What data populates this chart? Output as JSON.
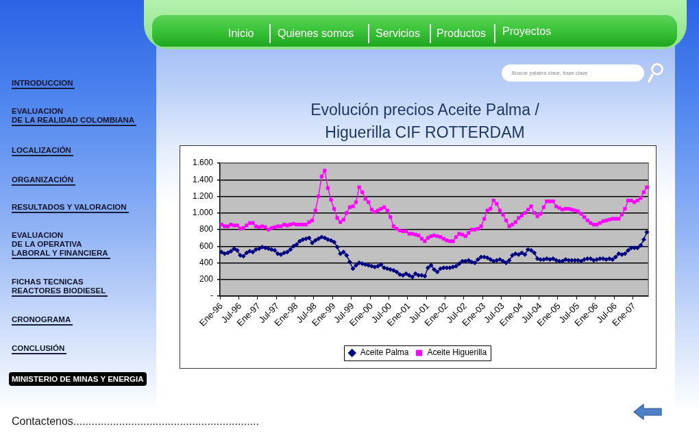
{
  "chart_data": [
    {
      "type": "other",
      "annotations": [
        "Inicio",
        "Quienes somos",
        "Servicios",
        "Productos",
        "Proyectos",
        "Buscar palabra clave, frase clave"
      ]
    },
    {
      "type": "other",
      "annotations": [
        "INTRODUCCION",
        "EVALUACION\nDE LA REALIDAD COLOMBIANA",
        "LOCALIZACIÓN",
        "ORGANIZACIÓN",
        "RESULTADOS Y VALORACION",
        "EVALUACION\nDE LA OPERATIVA\nLABORAL Y FINANCIERA",
        "FICHAS TECNICAS\nREACTORES BIODIESEL",
        "CRONOGRAMA",
        "CONCLUSIÓN",
        "MINISTERIO DE MINAS Y ENERGIA",
        "Contactenos............................................................."
      ]
    },
    {
      "type": "line",
      "title": "Evolución precios Aceite Palma / Higuerilla CIF ROTTERDAM",
      "categories": [
        "Ene-96",
        null,
        null,
        null,
        null,
        null,
        "Jul-96",
        null,
        null,
        null,
        null,
        null,
        "Ene-97",
        null,
        null,
        null,
        null,
        null,
        "Jul-97",
        null,
        null,
        null,
        null,
        null,
        "Ene-98",
        null,
        null,
        null,
        null,
        null,
        "Jul-98",
        null,
        null,
        null,
        null,
        null,
        "Ene-99",
        null,
        null,
        null,
        null,
        null,
        "Jul-99",
        null,
        null,
        null,
        null,
        null,
        "Ene-00",
        null,
        null,
        null,
        null,
        null,
        "Jul-00",
        null,
        null,
        null,
        null,
        null,
        "Ene-01",
        null,
        null,
        null,
        null,
        null,
        "Jul-01",
        null,
        null,
        null,
        null,
        null,
        "Ene-02",
        null,
        null,
        null,
        null,
        null,
        "Jul-02",
        null,
        null,
        null,
        null,
        null,
        "Ene-03",
        null,
        null,
        null,
        null,
        null,
        "Jul-03",
        null,
        null,
        null,
        null,
        null,
        "Ene-04",
        null,
        null,
        null,
        null,
        null,
        "Jul-04",
        null,
        null,
        null,
        null,
        null,
        "Ene-05",
        null,
        null,
        null,
        null,
        null,
        "Jul-05",
        null,
        null,
        null,
        null,
        null,
        "Ene-06",
        null,
        null,
        null,
        null,
        null,
        "Jul-06",
        null,
        null,
        null,
        null,
        null,
        "Ene-07",
        null,
        null,
        null,
        null
      ],
      "series": [
        {
          "name": "Aceite Palma",
          "color": "#000080",
          "marker": "diamond",
          "values": [
            530,
            510,
            520,
            540,
            570,
            550,
            490,
            480,
            520,
            540,
            530,
            560,
            570,
            590,
            580,
            570,
            560,
            550,
            510,
            500,
            520,
            530,
            560,
            600,
            620,
            660,
            680,
            690,
            700,
            640,
            670,
            690,
            710,
            700,
            680,
            670,
            650,
            590,
            510,
            530,
            490,
            410,
            330,
            370,
            400,
            390,
            380,
            370,
            360,
            350,
            360,
            380,
            340,
            330,
            320,
            310,
            290,
            260,
            250,
            270,
            250,
            230,
            270,
            250,
            250,
            240,
            340,
            370,
            320,
            290,
            330,
            340,
            340,
            340,
            350,
            360,
            390,
            420,
            420,
            430,
            410,
            400,
            440,
            470,
            470,
            460,
            440,
            420,
            430,
            440,
            420,
            400,
            430,
            490,
            510,
            500,
            520,
            500,
            560,
            550,
            520,
            450,
            440,
            440,
            450,
            440,
            450,
            430,
            420,
            420,
            440,
            430,
            430,
            430,
            430,
            420,
            440,
            450,
            450,
            430,
            440,
            450,
            450,
            440,
            450,
            440,
            470,
            510,
            500,
            510,
            550,
            580,
            580,
            580,
            610,
            680,
            770
          ]
        },
        {
          "name": "Aceite Higuerilla",
          "color": "#ff00ff",
          "marker": "square",
          "values": [
            860,
            840,
            840,
            860,
            850,
            850,
            810,
            820,
            850,
            880,
            880,
            840,
            830,
            840,
            830,
            800,
            820,
            830,
            840,
            840,
            860,
            850,
            860,
            870,
            860,
            860,
            860,
            860,
            890,
            910,
            1030,
            1200,
            1440,
            1510,
            1300,
            1160,
            1050,
            940,
            890,
            920,
            1000,
            1070,
            1080,
            1130,
            1310,
            1250,
            1170,
            1130,
            1040,
            1010,
            1030,
            1050,
            1070,
            1030,
            950,
            840,
            810,
            790,
            780,
            780,
            750,
            750,
            740,
            730,
            690,
            660,
            700,
            720,
            730,
            720,
            710,
            690,
            670,
            660,
            660,
            710,
            750,
            740,
            720,
            760,
            800,
            800,
            810,
            840,
            930,
            1030,
            1050,
            1150,
            1110,
            1030,
            980,
            910,
            840,
            860,
            890,
            940,
            970,
            1000,
            1040,
            1080,
            1000,
            960,
            990,
            1070,
            1140,
            1140,
            1140,
            1080,
            1060,
            1040,
            1050,
            1050,
            1040,
            1030,
            1020,
            990,
            950,
            910,
            880,
            860,
            860,
            880,
            900,
            910,
            920,
            930,
            930,
            930,
            980,
            1050,
            1150,
            1150,
            1130,
            1150,
            1180,
            1250,
            1310
          ]
        }
      ],
      "ylim": [
        0,
        1600
      ],
      "yticks": [
        {
          "value": 0,
          "label": "-"
        },
        200,
        400,
        600,
        800,
        {
          "value": 1000,
          "label": "1.000"
        },
        {
          "value": 1200,
          "label": "1.200"
        },
        {
          "value": 1400,
          "label": "1.400"
        },
        {
          "value": 1600,
          "label": "1.600"
        }
      ],
      "grid": "y",
      "legend": "bottom",
      "line_style": "solid"
    }
  ]
}
